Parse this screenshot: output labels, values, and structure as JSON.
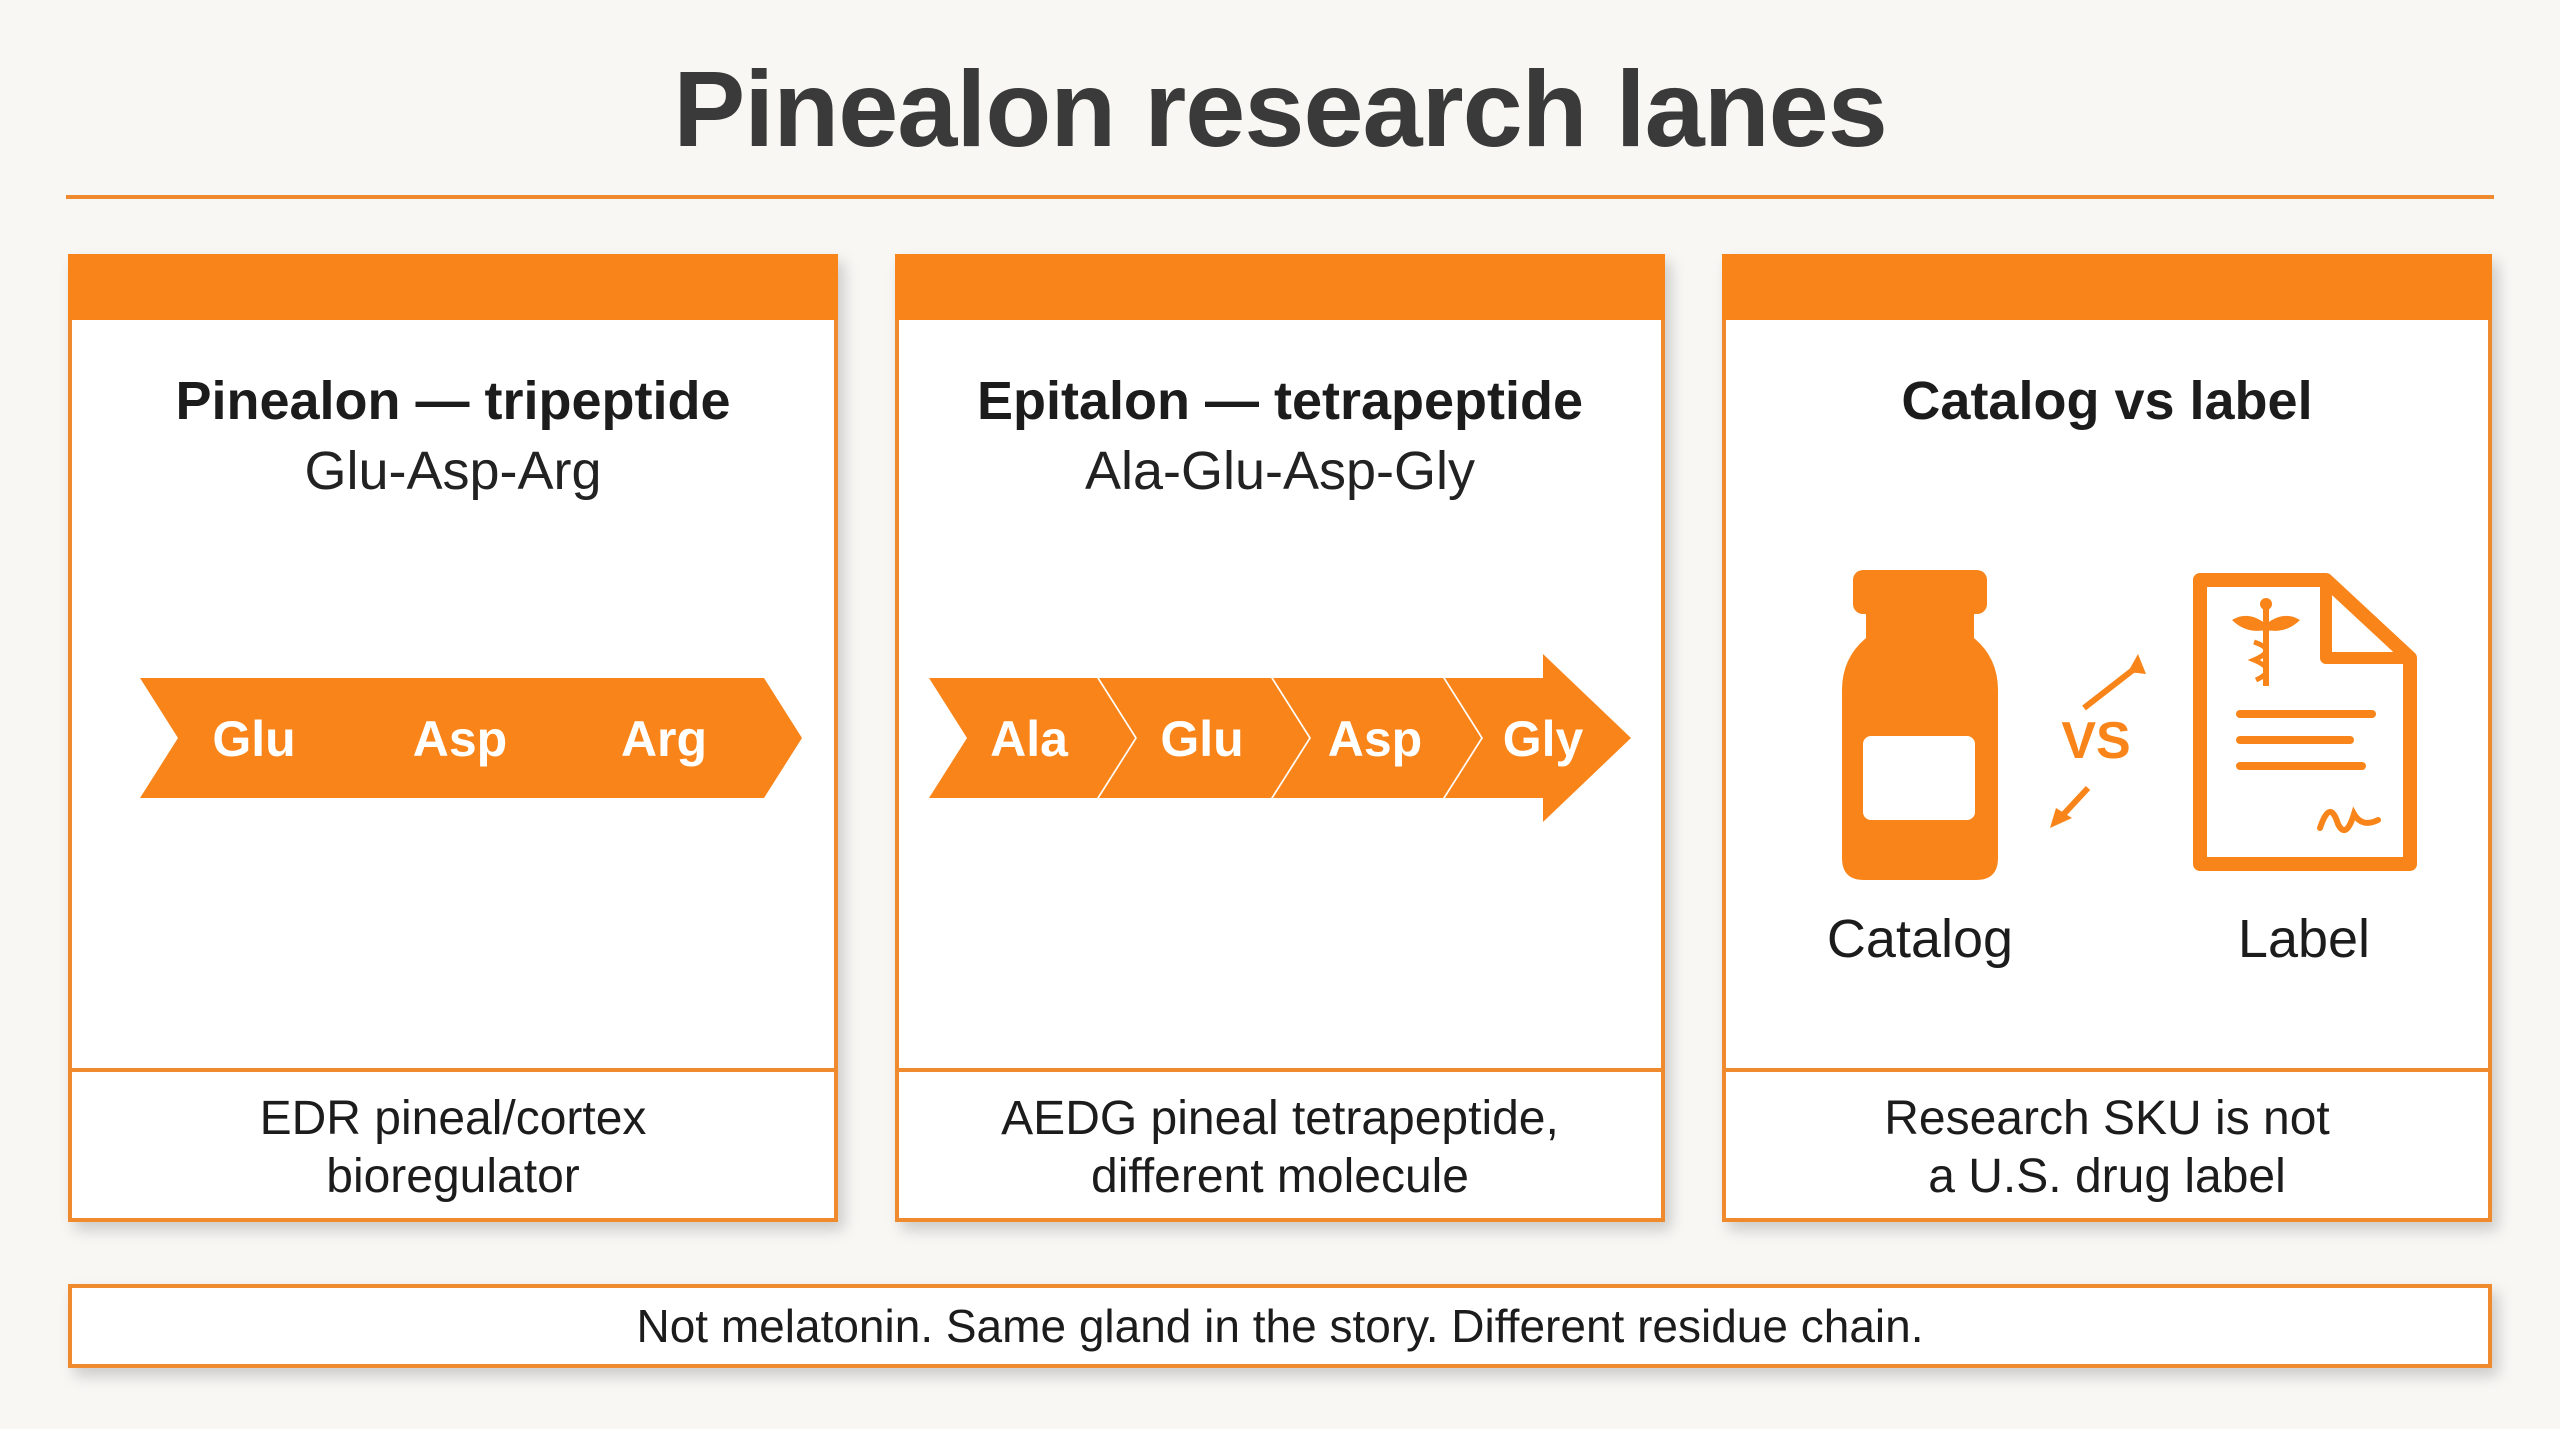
{
  "title": "Pinealon research lanes",
  "panels": [
    {
      "heading": "Pinealon — tripeptide",
      "sequence": "Glu-Asp-Arg",
      "residues": [
        "Glu",
        "Asp",
        "Arg"
      ],
      "footer_line1": "EDR pineal/cortex",
      "footer_line2": "bioregulator"
    },
    {
      "heading": "Epitalon — tetrapeptide",
      "sequence": "Ala-Glu-Asp-Gly",
      "residues": [
        "Ala",
        "Glu",
        "Asp",
        "Gly"
      ],
      "footer_line1": "AEDG pineal tetrapeptide,",
      "footer_line2": "different molecule"
    },
    {
      "heading": "Catalog vs label",
      "catalog_label": "Catalog",
      "label_label": "Label",
      "vs_text": "VS",
      "footer_line1": "Research SKU is not",
      "footer_line2": "a U.S. drug label"
    }
  ],
  "footer_note": "Not melatonin. Same gland in the story. Different residue chain.",
  "colors": {
    "accent": "#f9851a",
    "border": "#f08a2e",
    "text": "#1c1c1c",
    "title": "#3a3a3a"
  },
  "icons": [
    "vial-icon",
    "document-icon",
    "caduceus-icon",
    "vs-arrows-icon",
    "signature-icon"
  ]
}
